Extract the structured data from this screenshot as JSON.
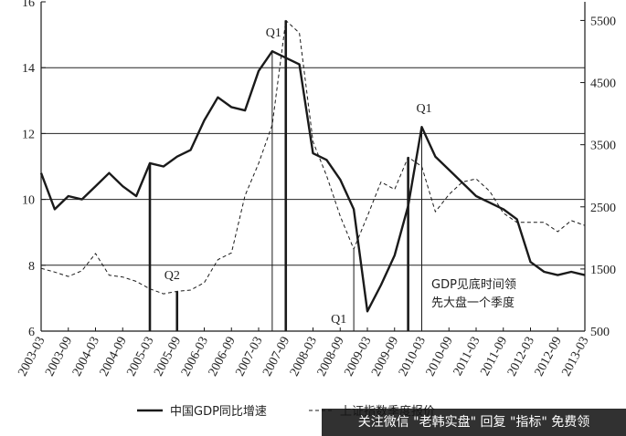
{
  "chart_data": {
    "type": "line",
    "x": [
      "2003-03",
      "2003-06",
      "2003-09",
      "2003-12",
      "2004-03",
      "2004-06",
      "2004-09",
      "2004-12",
      "2005-03",
      "2005-06",
      "2005-09",
      "2005-12",
      "2006-03",
      "2006-06",
      "2006-09",
      "2006-12",
      "2007-03",
      "2007-06",
      "2007-09",
      "2007-12",
      "2008-03",
      "2008-06",
      "2008-09",
      "2008-12",
      "2009-03",
      "2009-06",
      "2009-09",
      "2009-12",
      "2010-03",
      "2010-06",
      "2010-09",
      "2010-12",
      "2011-03",
      "2011-06",
      "2011-09",
      "2011-12",
      "2012-03",
      "2012-06",
      "2012-09",
      "2012-12",
      "2013-03"
    ],
    "x_tick_labels": [
      "2003-03",
      "2003-09",
      "2004-03",
      "2004-09",
      "2005-03",
      "2005-09",
      "2006-03",
      "2006-09",
      "2007-03",
      "2007-09",
      "2008-03",
      "2008-09",
      "2009-03",
      "2009-09",
      "2010-03",
      "2010-09",
      "2011-03",
      "2011-09",
      "2012-03",
      "2012-09",
      "2013-03"
    ],
    "series": [
      {
        "name": "中国GDP同比增速",
        "axis": "left",
        "style": "solid",
        "values": [
          10.8,
          9.7,
          10.1,
          10.0,
          10.4,
          10.8,
          10.4,
          10.1,
          11.1,
          11.0,
          11.3,
          11.5,
          12.4,
          13.1,
          12.8,
          12.7,
          13.9,
          14.5,
          14.3,
          14.1,
          11.4,
          11.2,
          10.6,
          9.7,
          6.6,
          7.4,
          8.3,
          9.8,
          12.2,
          11.3,
          10.9,
          10.5,
          10.1,
          9.9,
          9.7,
          9.4,
          8.1,
          7.8,
          7.7,
          7.8,
          7.7
        ]
      },
      {
        "name": "上证指数季度报价",
        "axis": "right",
        "style": "dashed",
        "values": [
          1510,
          1450,
          1380,
          1470,
          1750,
          1400,
          1370,
          1300,
          1180,
          1100,
          1140,
          1160,
          1280,
          1650,
          1760,
          2680,
          3200,
          3820,
          5500,
          5300,
          3550,
          3000,
          2350,
          1820,
          2350,
          2900,
          2780,
          3300,
          3150,
          2420,
          2700,
          2900,
          2950,
          2750,
          2400,
          2250,
          2250,
          2250,
          2100,
          2280,
          2200
        ]
      }
    ],
    "y_left": {
      "ylim": [
        6,
        16
      ],
      "ticks": [
        6,
        8,
        10,
        12,
        14,
        16
      ]
    },
    "y_right": {
      "ylim": [
        500,
        5800
      ],
      "ticks": [
        500,
        1500,
        2500,
        3500,
        4500,
        5500
      ]
    },
    "gridlines_left": [
      8,
      10,
      12,
      14
    ],
    "markers": [
      {
        "x": "2005-03",
        "series_index": 0,
        "style": "thick"
      },
      {
        "x": "2005-09",
        "series_index": 1,
        "style": "thick",
        "label": "Q2"
      },
      {
        "x": "2007-06",
        "series_index": 0,
        "style": "thin"
      },
      {
        "x": "2007-09",
        "series_index": 1,
        "style": "thick",
        "label": "Q1"
      },
      {
        "x": "2008-12",
        "series_index": 1,
        "style": "thin",
        "label": "Q1"
      },
      {
        "x": "2009-12",
        "series_index": 1,
        "style": "thick"
      },
      {
        "x": "2010-03",
        "series_index": 0,
        "style": "thin",
        "label": "Q1"
      }
    ],
    "annotation": [
      "GDP见底时间领",
      "先大盘一个季度"
    ],
    "legend": [
      "中国GDP同比增速",
      "上证指数季度报价"
    ]
  },
  "watermark": "关注微信 \"老韩实盘\" 回复 \"指标\" 免费领",
  "colors": {
    "line": "#1a1a1a",
    "grid": "#222222"
  }
}
